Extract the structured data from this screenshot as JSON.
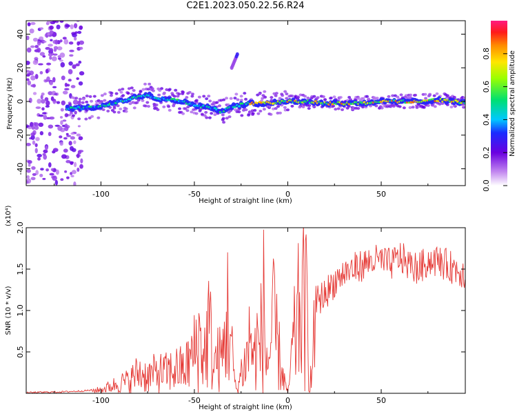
{
  "title": "C2E1.2023.050.22.56.R24",
  "chart_data": [
    {
      "type": "heatmap",
      "xlabel": "Height of straight line (km)",
      "ylabel": "Frequency (Hz)",
      "xlim": [
        -140,
        95
      ],
      "ylim": [
        -50,
        48
      ],
      "x_ticks": [
        -100,
        -50,
        0,
        50
      ],
      "y_ticks": [
        -40,
        -20,
        0,
        20,
        40
      ],
      "colorbar": {
        "label": "Normalized spectral amplitude",
        "range": [
          0.0,
          1.0
        ],
        "ticks": [
          0.0,
          0.2,
          0.4,
          0.6,
          0.8
        ]
      },
      "ridge": {
        "x": [
          -118,
          -110,
          -100,
          -90,
          -80,
          -75,
          -70,
          -60,
          -50,
          -45,
          -40,
          -35,
          -30,
          -25,
          -20,
          -15,
          -10,
          -5,
          0,
          10,
          20,
          30,
          40,
          50,
          60,
          70,
          80,
          90,
          95
        ],
        "frequency": [
          -4,
          -4,
          -3,
          0,
          3,
          4,
          2,
          1,
          -2,
          -3,
          -4,
          -6,
          -3,
          -2,
          -1,
          -1,
          -1,
          0,
          0,
          0,
          -1,
          -1,
          -1,
          0,
          0,
          0,
          1,
          0,
          -1
        ]
      },
      "off_ridge_feature": {
        "x": [
          -30,
          -27
        ],
        "frequency": [
          20,
          28
        ]
      },
      "noise_region_x": [
        -140,
        -110
      ]
    },
    {
      "type": "line",
      "xlabel": "Height of straight line (km)",
      "ylabel": "SNR (10 * v/v)",
      "y_multiplier": "(x10⁴)",
      "xlim": [
        -140,
        95
      ],
      "ylim": [
        0.0,
        2.0
      ],
      "x_ticks": [
        -100,
        -50,
        0,
        50
      ],
      "y_ticks": [
        0.5,
        1.0,
        1.5,
        2.0
      ],
      "series": [
        {
          "color": "#e53935",
          "x": [
            -140,
            -120,
            -110,
            -100,
            -95,
            -90,
            -85,
            -80,
            -75,
            -70,
            -65,
            -60,
            -55,
            -50,
            -47,
            -45,
            -42,
            -40,
            -38,
            -35,
            -32,
            -30,
            -28,
            -27,
            -25,
            -22,
            -20,
            -18,
            -17,
            -15,
            -13,
            -12,
            -10,
            -8,
            -7,
            -5,
            -3,
            0,
            3,
            5,
            7,
            10,
            12,
            13,
            15,
            20,
            25,
            30,
            35,
            40,
            45,
            50,
            55,
            60,
            65,
            70,
            75,
            80,
            85,
            90,
            95
          ],
          "y": [
            0.01,
            0.02,
            0.03,
            0.05,
            0.1,
            0.15,
            0.18,
            0.3,
            0.25,
            0.3,
            0.3,
            0.35,
            0.35,
            0.6,
            0.8,
            0.5,
            1.0,
            0.4,
            0.5,
            0.5,
            1.2,
            0.6,
            0.1,
            0.05,
            0.3,
            0.5,
            0.9,
            0.4,
            0.8,
            0.6,
            1.3,
            0.5,
            0.5,
            1.0,
            0.9,
            0.6,
            0.3,
            0.0,
            0.7,
            1.0,
            1.3,
            1.2,
            0.2,
            0.3,
            1.1,
            1.2,
            1.35,
            1.45,
            1.5,
            1.55,
            1.6,
            1.6,
            1.55,
            1.65,
            1.55,
            1.5,
            1.6,
            1.6,
            1.55,
            1.5,
            1.45
          ]
        }
      ]
    }
  ]
}
